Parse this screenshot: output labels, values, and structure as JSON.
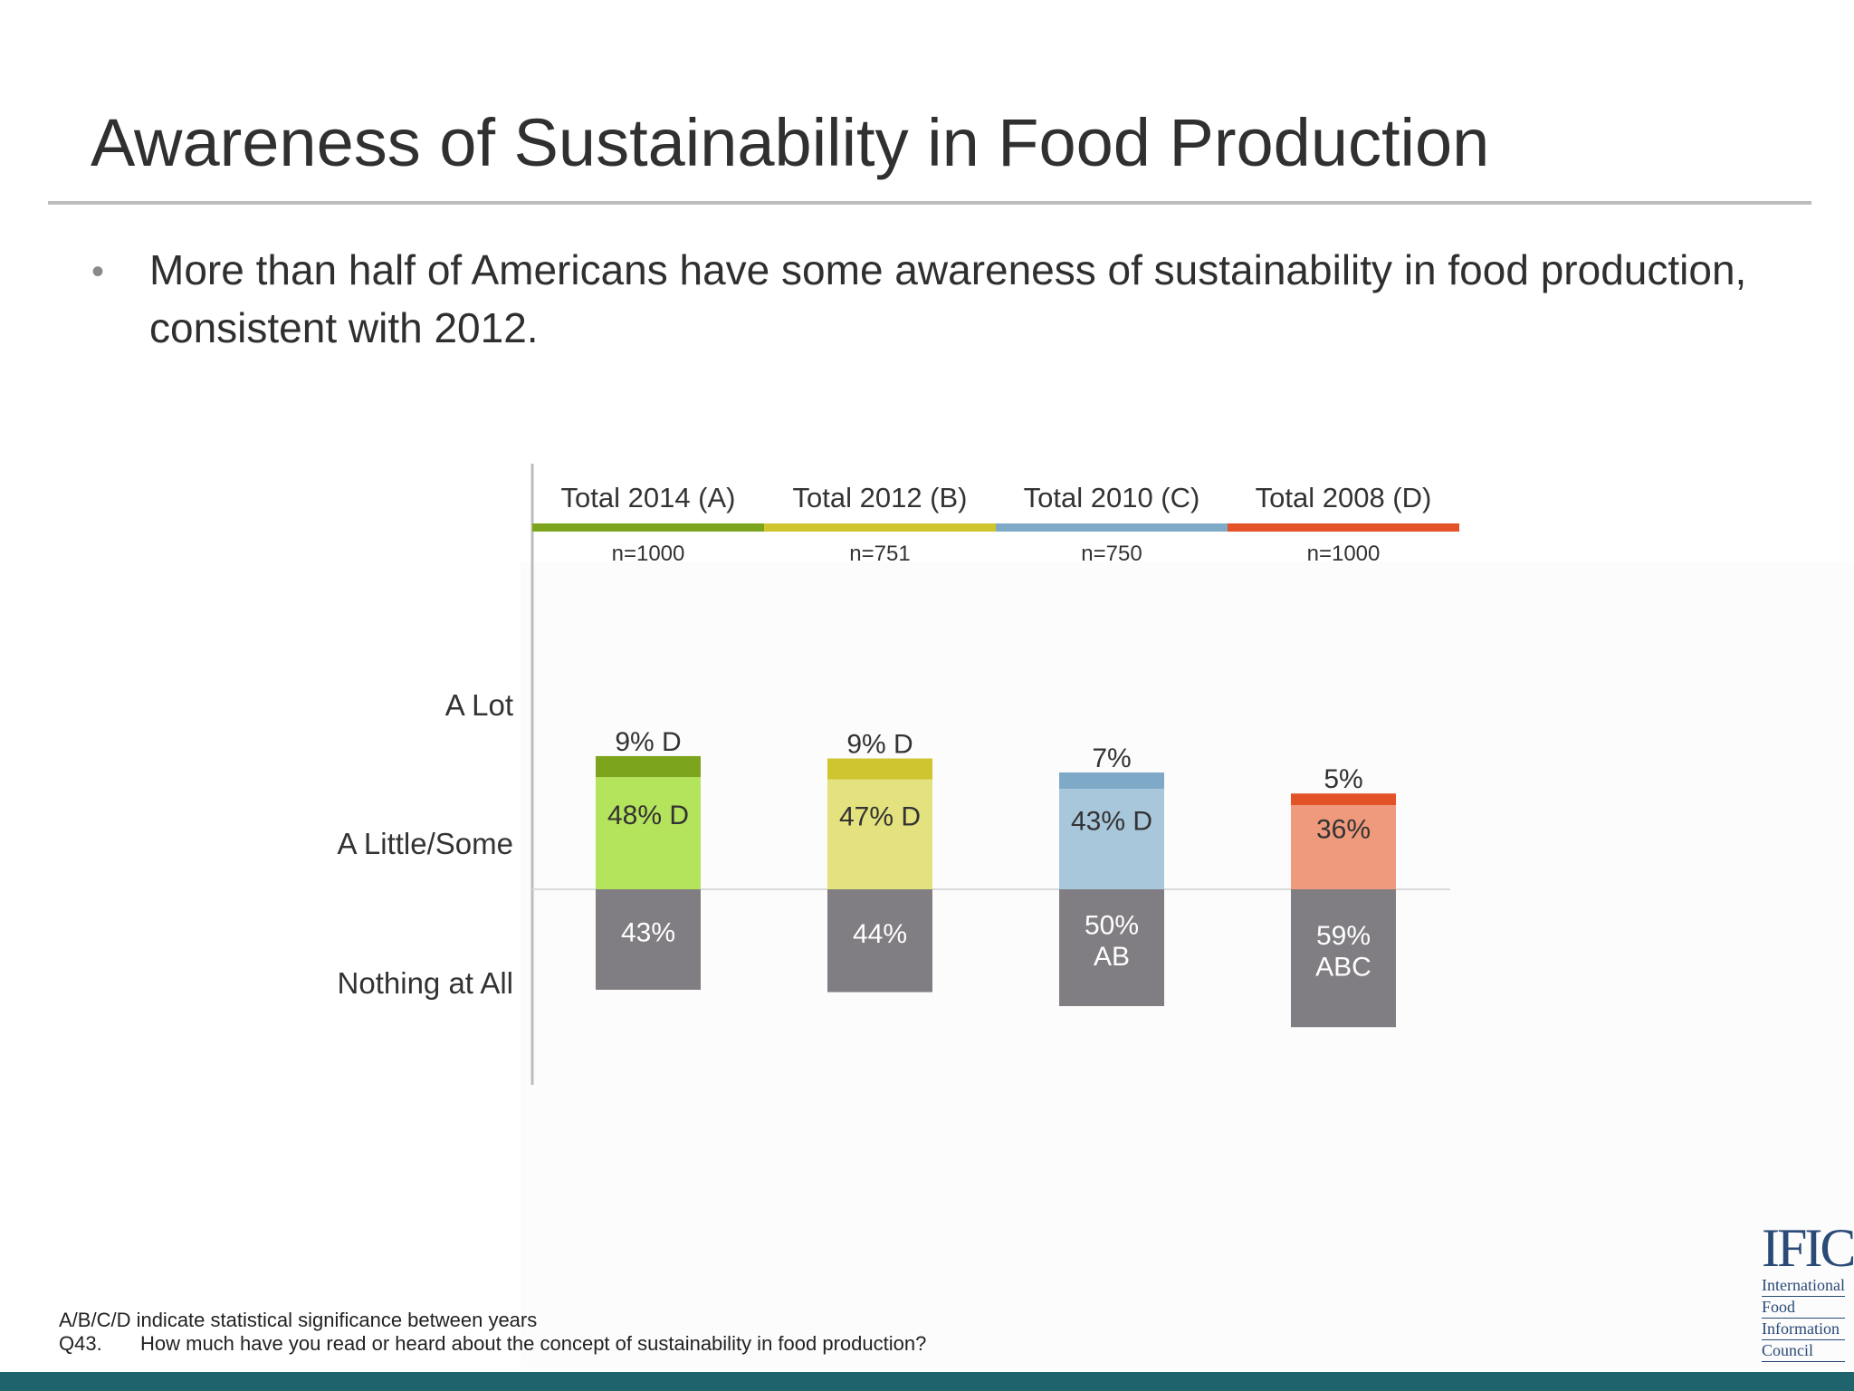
{
  "slide": {
    "title": "Awareness of Sustainability in Food Production",
    "bullet": "More than half of Americans have some awareness of sustainability in food production, consistent with 2012."
  },
  "footnotes": {
    "significance": "A/B/C/D indicate statistical significance between years",
    "question_id": "Q43.",
    "question_text": "How much have you read or heard about the concept of sustainability in food production?"
  },
  "logo": {
    "mark": "IFIC",
    "lines": [
      "International",
      "Food",
      "Information",
      "Council"
    ]
  },
  "chart_data": {
    "type": "bar",
    "stacked": true,
    "orientation": "diverging-vertical",
    "categories": [
      "Total 2014 (A)",
      "Total 2012 (B)",
      "Total 2010 (C)",
      "Total 2008 (D)"
    ],
    "sample_sizes": [
      "n=1000",
      "n=751",
      "n=750",
      "n=1000"
    ],
    "category_colors": [
      "#7ca41d",
      "#cfc62f",
      "#7eaac8",
      "#e45227"
    ],
    "row_labels": [
      "A Lot",
      "A Little/Some",
      "Nothing at All"
    ],
    "series": [
      {
        "name": "A Lot",
        "values": [
          9,
          9,
          7,
          5
        ],
        "labels": [
          "9% D",
          "9% D",
          "7%",
          "5%"
        ],
        "colors": [
          "#7ca41d",
          "#cfc62f",
          "#7eaac8",
          "#e45227"
        ]
      },
      {
        "name": "A Little/Some",
        "values": [
          48,
          47,
          43,
          36
        ],
        "labels": [
          "48% D",
          "47% D",
          "43% D",
          "36%"
        ],
        "colors": [
          "#b4e35c",
          "#e3e27f",
          "#a8c7da",
          "#ef9a7c"
        ]
      },
      {
        "name": "Nothing at All",
        "values": [
          43,
          44,
          50,
          59
        ],
        "labels": [
          "43%",
          "44%",
          "50%\nAB",
          "59%\nABC"
        ],
        "colors": [
          "#807e82",
          "#807e82",
          "#807e82",
          "#807e82"
        ]
      }
    ],
    "title": "",
    "xlabel": "",
    "ylabel": "",
    "ylim": [
      -59,
      57
    ],
    "grid": false,
    "legend": "none"
  }
}
